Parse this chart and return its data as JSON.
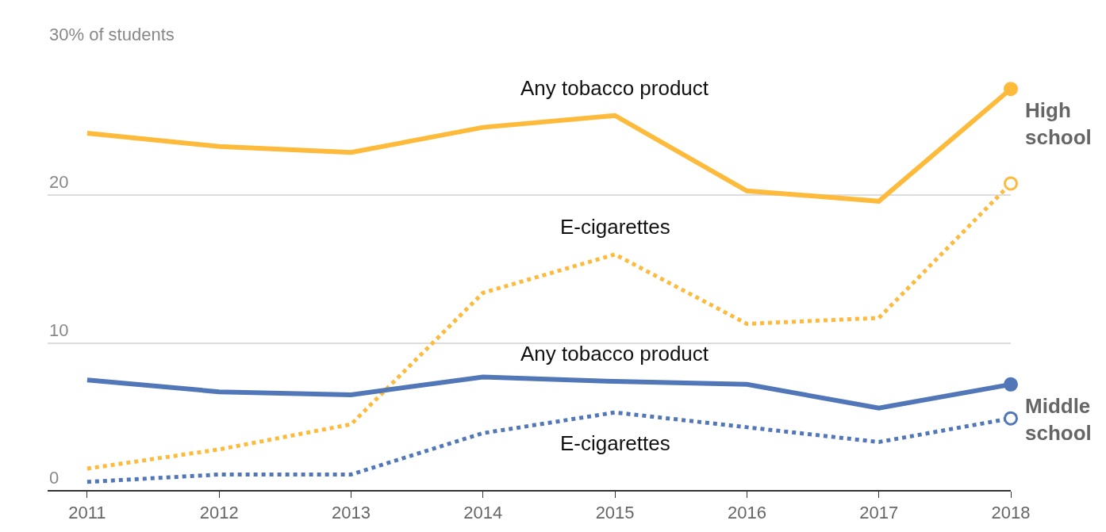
{
  "chart_data": {
    "type": "line",
    "x": [
      2011,
      2012,
      2013,
      2014,
      2015,
      2016,
      2017,
      2018
    ],
    "series": [
      {
        "color": "#fdba3b",
        "line_style": "solid",
        "values": [
          24.2,
          23.3,
          22.9,
          24.6,
          25.4,
          20.3,
          19.6,
          27.2
        ]
      },
      {
        "color": "#fdba3b",
        "line_style": "dotted",
        "values": [
          1.5,
          2.8,
          4.5,
          13.4,
          16.0,
          11.3,
          11.7,
          20.8
        ]
      },
      {
        "color": "#5177b8",
        "line_style": "solid",
        "values": [
          7.5,
          6.7,
          6.5,
          7.7,
          7.4,
          7.2,
          5.6,
          7.2
        ]
      },
      {
        "color": "#5177b8",
        "line_style": "dotted",
        "values": [
          0.6,
          1.1,
          1.1,
          3.9,
          5.3,
          4.3,
          3.3,
          4.9
        ]
      }
    ],
    "xlim": [
      2010.7,
      2018
    ],
    "xticks": [
      2011,
      2012,
      2013,
      2014,
      2015,
      2016,
      2017,
      2018
    ],
    "ylim": [
      0,
      30
    ],
    "yticks": [
      0,
      10,
      20,
      {
        "value": 30,
        "label": "30% of students"
      }
    ],
    "grid": "y",
    "marker": "none",
    "annotations": [
      "Any tobacco product",
      "E-cigarettes",
      "Any tobacco product",
      "E-cigarettes",
      "High school",
      "Middle school"
    ]
  }
}
